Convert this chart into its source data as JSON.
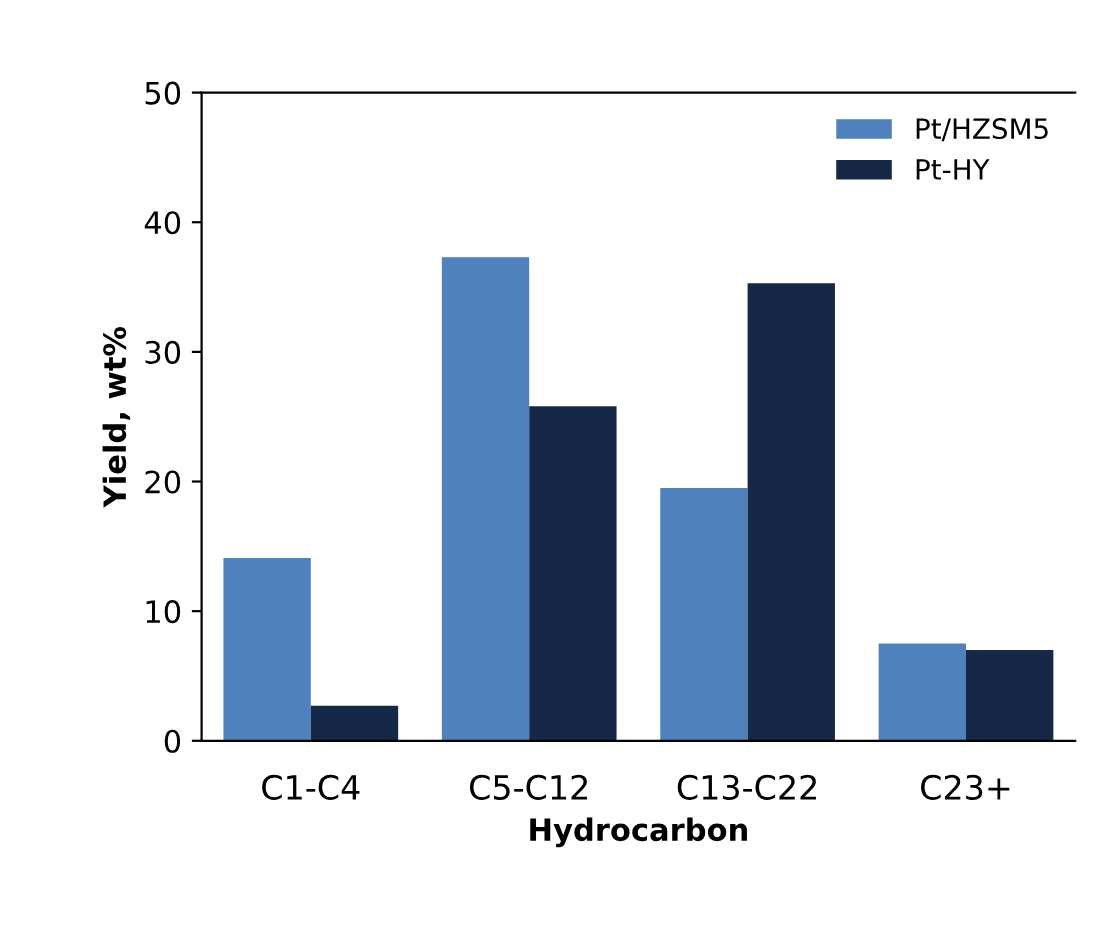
{
  "chart_data": {
    "type": "bar",
    "xlabel": "Hydrocarbon",
    "ylabel": "Yield, wt%",
    "categories": [
      "C1-C4",
      "C5-C12",
      "C13-C22",
      "C23+"
    ],
    "series": [
      {
        "name": "Pt/HZSM5",
        "color": "#4f81bd",
        "values": [
          14.1,
          37.3,
          19.5,
          7.5
        ]
      },
      {
        "name": "Pt-HY",
        "color": "#162848",
        "values": [
          2.7,
          25.8,
          35.3,
          7.0
        ]
      }
    ],
    "ylim": [
      0,
      50
    ],
    "yticks": [
      0,
      10,
      20,
      30,
      40,
      50
    ],
    "grid": false,
    "legend": "top right"
  }
}
